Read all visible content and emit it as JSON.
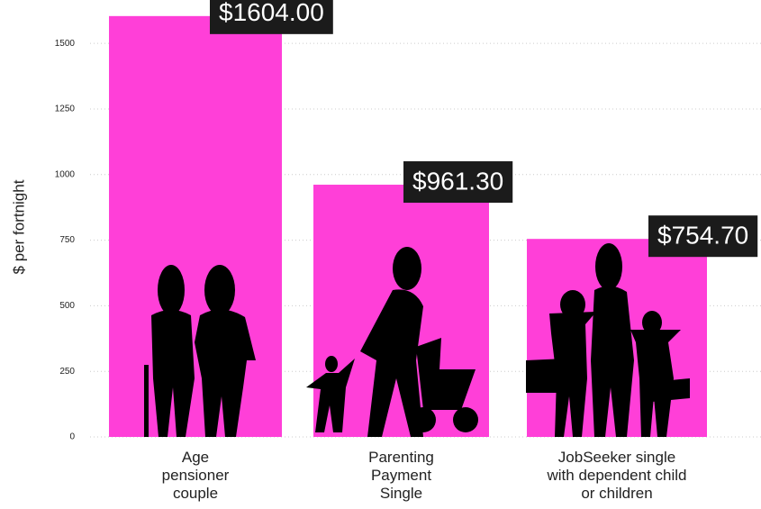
{
  "chart_data": {
    "type": "bar",
    "y_label": "$ per fortnight",
    "categories": [
      "Age pensioner couple",
      "Parenting Payment Single",
      "JobSeeker single with dependent child or children"
    ],
    "values": [
      1604,
      961.3,
      754.7
    ],
    "value_labels": [
      "$1604.00",
      "$961.30",
      "$754.70"
    ],
    "color": "#ff3fd8",
    "ylim": [
      0,
      1600
    ],
    "yticks": [
      0,
      250,
      500,
      750,
      1000,
      1250,
      1500
    ],
    "grid": true
  }
}
